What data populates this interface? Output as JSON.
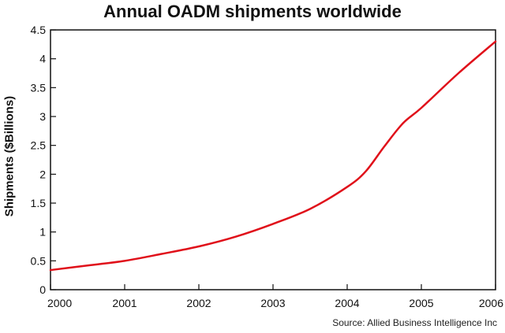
{
  "chart_data": {
    "type": "line",
    "title": "Annual OADM shipments worldwide",
    "ylabel": "Shipments ($Billions)",
    "xlabel": "",
    "source": "Source: Allied Business Intelligence Inc",
    "x_ticks": [
      "2000",
      "2001",
      "2002",
      "2003",
      "2004",
      "2005",
      "2006"
    ],
    "y_ticks": [
      "0",
      "0.5",
      "1",
      "1.5",
      "2",
      "2.5",
      "3",
      "3.5",
      "4",
      "4.5"
    ],
    "xlim": [
      2000,
      2006
    ],
    "ylim": [
      0,
      4.5
    ],
    "grid": false,
    "line_color": "#e0101a",
    "series": [
      {
        "x": [
          2000,
          2000.5,
          2001,
          2001.5,
          2002,
          2002.5,
          2003,
          2003.5,
          2004,
          2004.25,
          2004.5,
          2004.75,
          2005,
          2005.5,
          2006
        ],
        "values": [
          0.34,
          0.42,
          0.5,
          0.62,
          0.75,
          0.92,
          1.14,
          1.4,
          1.78,
          2.05,
          2.48,
          2.88,
          3.15,
          3.75,
          4.3
        ]
      }
    ]
  }
}
